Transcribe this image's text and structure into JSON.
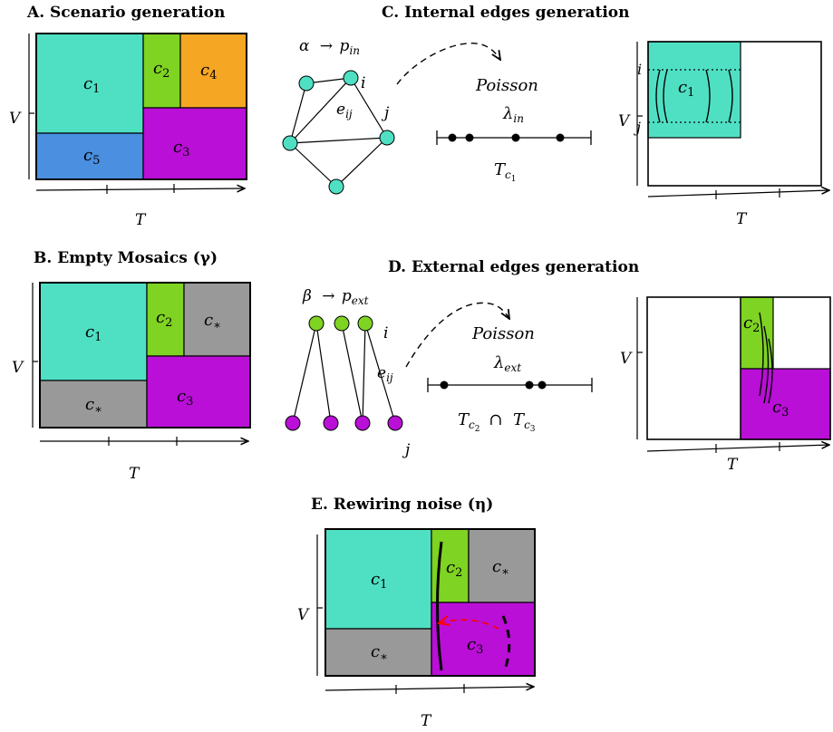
{
  "colors": {
    "teal": "#4fe0c4",
    "green": "#7fd323",
    "orange": "#f5a623",
    "purple": "#b90fd6",
    "blue": "#4a8fe0",
    "grey": "#999999",
    "edge_noise": "#ff0000"
  },
  "panels": {
    "A": {
      "title": "A. Scenario generation"
    },
    "B": {
      "title": "B. Empty Mosaics (γ)"
    },
    "C": {
      "title": "C. Internal edges generation"
    },
    "D": {
      "title": "D. External edges generation"
    },
    "E": {
      "title": "E. Rewiring noise (η)"
    }
  },
  "axis": {
    "x_label": "T",
    "y_label": "V"
  },
  "communities": {
    "c1": [
      "c",
      "1"
    ],
    "c2": [
      "c",
      "2"
    ],
    "c3": [
      "c",
      "3"
    ],
    "c4": [
      "c",
      "4"
    ],
    "c5": [
      "c",
      "5"
    ],
    "cstar": [
      "c",
      "∗"
    ]
  },
  "internal": {
    "rule_sym": "α",
    "rule_arrow": "→",
    "rule_p": "p",
    "rule_sub": "in",
    "node_i": "i",
    "node_j": "j",
    "edge_label": [
      "e",
      "ij"
    ],
    "process": "Poisson",
    "rate": [
      "λ",
      "in"
    ],
    "interval": [
      "T",
      "c",
      "1"
    ]
  },
  "external": {
    "rule_sym": "β",
    "rule_arrow": "→",
    "rule_p": "p",
    "rule_sub": "ext",
    "node_i": "i",
    "node_j": "j",
    "edge_label": [
      "e",
      "ij"
    ],
    "process": "Poisson",
    "rate": [
      "λ",
      "ext"
    ],
    "interval_a": [
      "T",
      "c",
      "2"
    ],
    "cap": "∩",
    "interval_b": [
      "T",
      "c",
      "3"
    ]
  }
}
